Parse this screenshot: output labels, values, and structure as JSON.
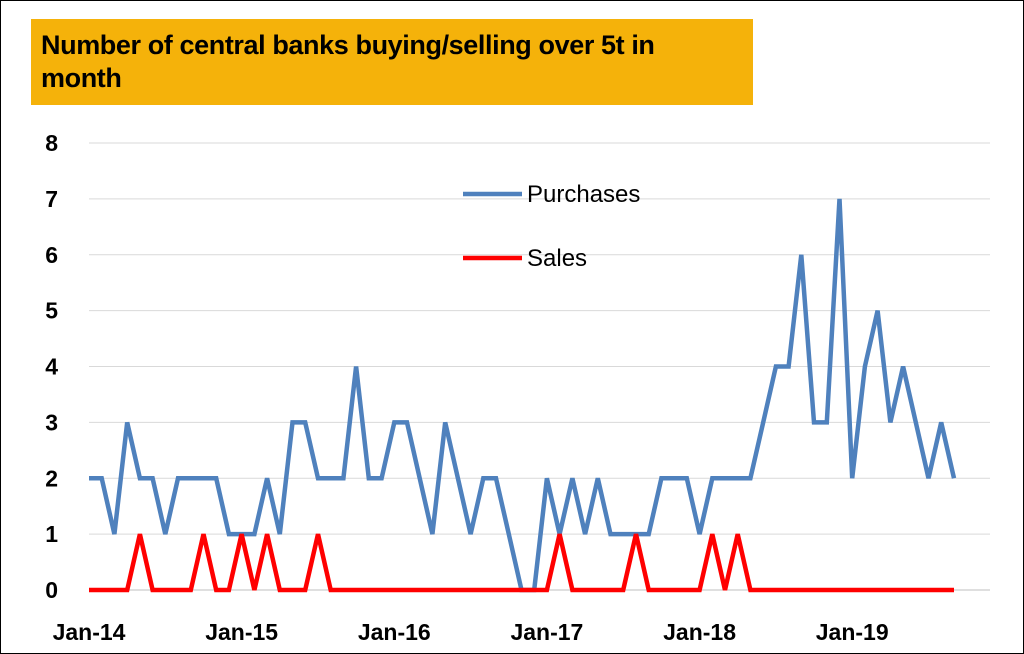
{
  "chart_data": {
    "type": "line",
    "title": "Number of central banks buying/selling over 5t in month",
    "xlabel": "",
    "ylabel": "",
    "ylim": [
      0,
      8
    ],
    "yticks": [
      "0",
      "1",
      "2",
      "3",
      "4",
      "5",
      "6",
      "7",
      "8"
    ],
    "xtick_labels": [
      "Jan-14",
      "Jan-15",
      "Jan-16",
      "Jan-17",
      "Jan-18",
      "Jan-19"
    ],
    "grid": true,
    "legend_position": "top-center",
    "months_count": 72,
    "series": [
      {
        "name": "Purchases",
        "color": "#4f81bd",
        "values": [
          2,
          2,
          1,
          3,
          2,
          2,
          1,
          2,
          2,
          2,
          2,
          1,
          1,
          1,
          2,
          1,
          3,
          3,
          2,
          2,
          2,
          4,
          2,
          2,
          3,
          3,
          2,
          1,
          3,
          2,
          1,
          2,
          2,
          1,
          0,
          0,
          2,
          1,
          2,
          1,
          2,
          1,
          1,
          1,
          1,
          2,
          2,
          2,
          1,
          2,
          2,
          2,
          2,
          3,
          4,
          4,
          6,
          3,
          3,
          7,
          2,
          4,
          5,
          3,
          4,
          3,
          2,
          3,
          2
        ]
      },
      {
        "name": "Sales",
        "color": "#ff0000",
        "values": [
          0,
          0,
          0,
          0,
          1,
          0,
          0,
          0,
          0,
          1,
          0,
          0,
          1,
          0,
          1,
          0,
          0,
          0,
          1,
          0,
          0,
          0,
          0,
          0,
          0,
          0,
          0,
          0,
          0,
          0,
          0,
          0,
          0,
          0,
          0,
          0,
          0,
          1,
          0,
          0,
          0,
          0,
          0,
          1,
          0,
          0,
          0,
          0,
          0,
          1,
          0,
          1,
          0,
          0,
          0,
          0,
          0,
          0,
          0,
          0,
          0,
          0,
          0,
          0,
          0,
          0,
          0,
          0,
          0
        ]
      }
    ]
  }
}
